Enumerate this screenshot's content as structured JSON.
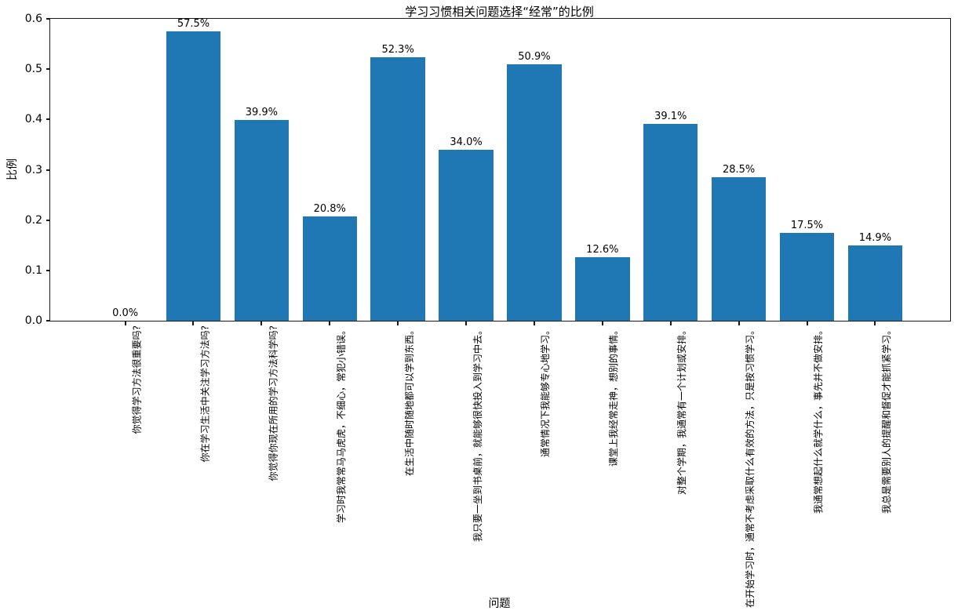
{
  "chart_data": {
    "type": "bar",
    "title": "学习习惯相关问题选择“经常”的比例",
    "xlabel": "问题",
    "ylabel": "比例",
    "ylim": [
      0,
      0.6
    ],
    "ytick_labels": [
      "0.0",
      "0.1",
      "0.2",
      "0.3",
      "0.4",
      "0.5",
      "0.6"
    ],
    "bar_color": "#1f77b4",
    "grid": false,
    "legend": "none",
    "categories": [
      "你觉得学习方法很重要吗?",
      "你在学习生活中关注学习方法吗?",
      "你觉得你现在所用的学习方法科学吗?",
      "学习时我常常马马虎虎，不细心，常犯小错误。",
      "在生活中随时随地都可以学到东西。",
      "我只要一坐到书桌前，就能够很快投入到学习中去。",
      "通常情况下我能够专心地学习。",
      "课堂上我经常走神，想别的事情。",
      "对整个学期，我通常有一个计划或安排。",
      "在开始学习时，通常不考虑采取什么有效的方法，只是按习惯学习。",
      "我通常想起什么就学什么，事先并不做安排。",
      "我总是需要别人的提醒和督促才能抓紧学习。"
    ],
    "values": [
      0.0,
      0.575,
      0.399,
      0.208,
      0.523,
      0.34,
      0.509,
      0.126,
      0.391,
      0.285,
      0.175,
      0.149
    ],
    "value_labels": [
      "0.0%",
      "57.5%",
      "39.9%",
      "20.8%",
      "52.3%",
      "34.0%",
      "50.9%",
      "12.6%",
      "39.1%",
      "28.5%",
      "17.5%",
      "14.9%"
    ]
  }
}
